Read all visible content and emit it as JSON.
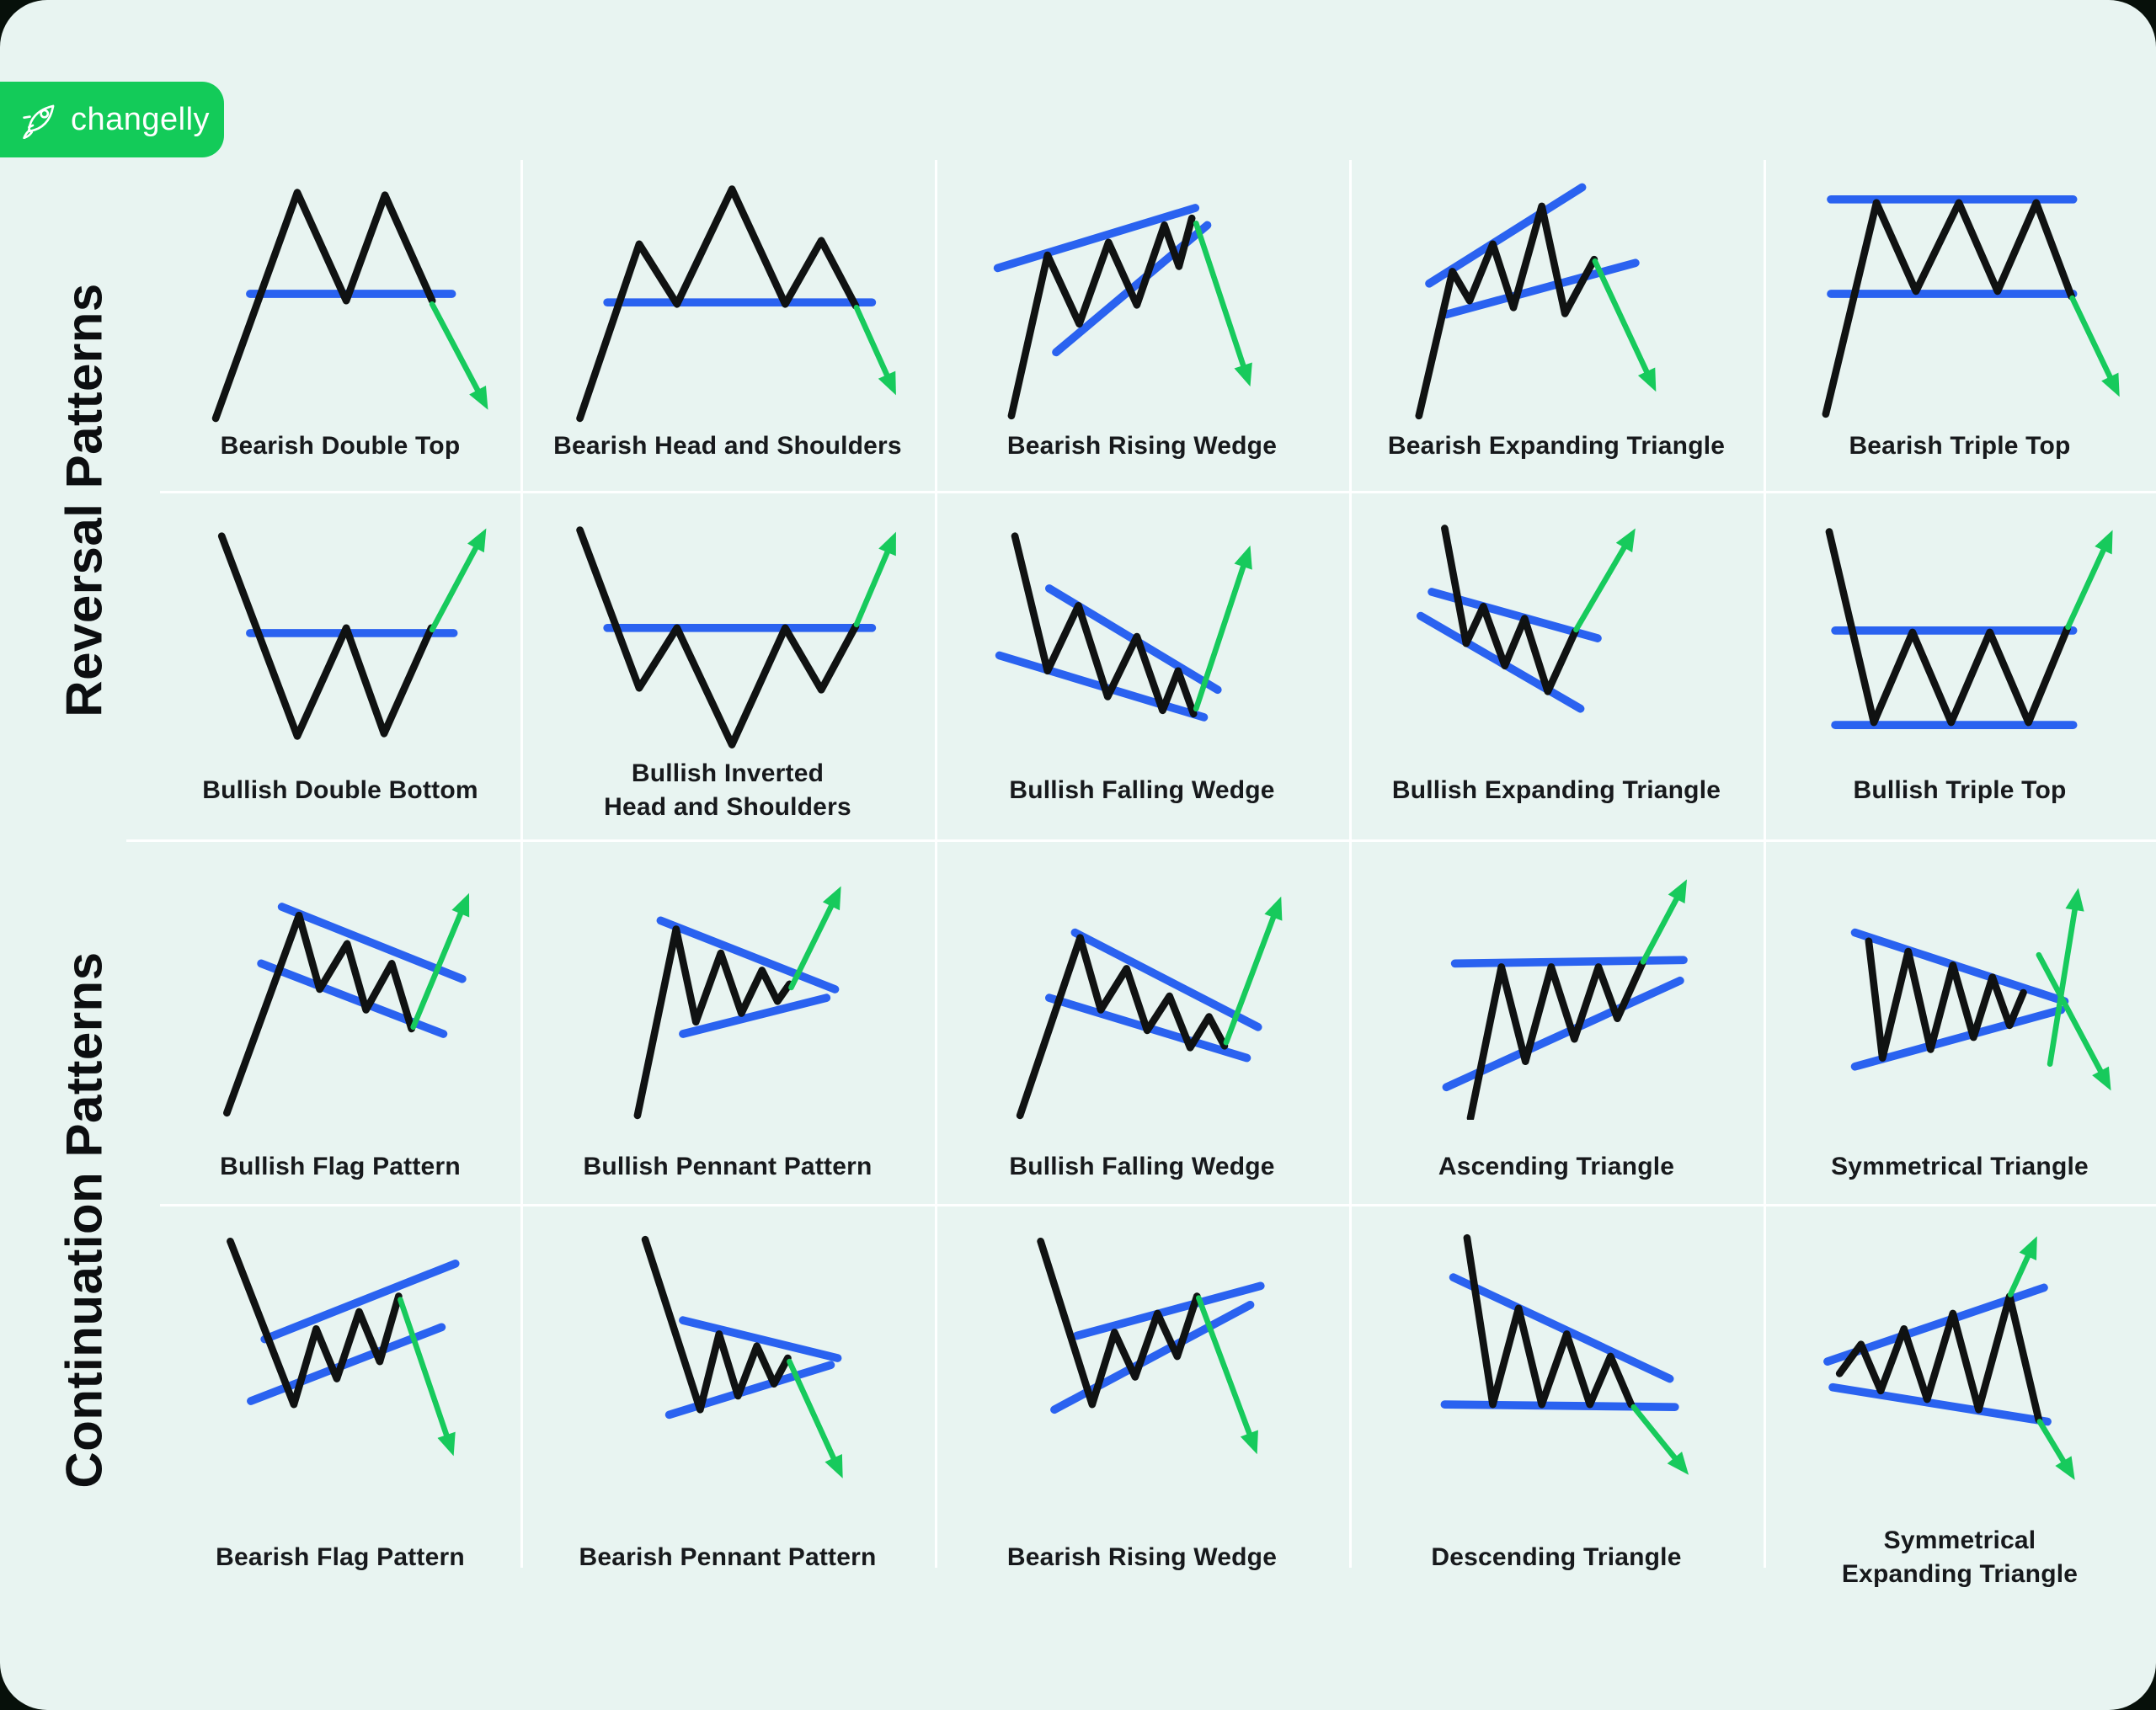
{
  "brand": {
    "name": "changelly",
    "icon": "rocket-icon",
    "badge_color": "#13cb59",
    "text_color": "#ffffff"
  },
  "colors": {
    "card_background": "#e8f4f1",
    "outer_background": "#07100a",
    "price_line": "#101212",
    "trend_line": "#2a62f0",
    "arrow": "#17ca5c",
    "divider": "#ffffff",
    "label_text": "#17191c"
  },
  "sections": [
    {
      "label": "Reversal Patterns"
    },
    {
      "label": "Continuation Patterns"
    }
  ],
  "grid": {
    "rows": [
      {
        "cells": [
          {
            "label_lines": [
              "Bearish Double Top"
            ],
            "black": [
              55,
              295,
              150,
              32,
              207,
              158,
              252,
              35,
              307,
              158
            ],
            "blue": [
              [
                95,
                150,
                330,
                150
              ]
            ],
            "arrows": [
              [
                307,
                162,
                372,
                285
              ]
            ]
          },
          {
            "label_lines": [
              "Bearish Head and Shoulders"
            ],
            "black": [
              28,
              295,
              97,
              92,
              141,
              162,
              205,
              28,
              267,
              162,
              309,
              88,
              349,
              164
            ],
            "blue": [
              [
                60,
                160,
                368,
                160
              ]
            ],
            "arrows": [
              [
                350,
                166,
                396,
                268
              ]
            ]
          },
          {
            "label_lines": [
              "Bearish Rising Wedge"
            ],
            "black": [
              48,
              292,
              90,
              105,
              127,
              185,
              161,
              90,
              194,
              163,
              226,
              70,
              243,
              118,
              258,
              62
            ],
            "blue": [
              [
                32,
                120,
                262,
                50
              ],
              [
                100,
                218,
                276,
                70
              ]
            ],
            "arrows": [
              [
                263,
                68,
                326,
                258
              ]
            ]
          },
          {
            "label_lines": [
              "Bearish Expanding Triangle"
            ],
            "black": [
              40,
              292,
              79,
              124,
              99,
              158,
              126,
              92,
              150,
              166,
              183,
              48,
              210,
              173,
              244,
              110
            ],
            "blue": [
              [
                52,
                138,
                230,
                26
              ],
              [
                72,
                174,
                292,
                114
              ]
            ],
            "arrows": [
              [
                245,
                112,
                316,
                264
              ]
            ]
          },
          {
            "label_lines": [
              "Bearish Triple Top"
            ],
            "black": [
              44,
              290,
              103,
              44,
              149,
              147,
              199,
              44,
              244,
              147,
              289,
              44,
              330,
              153
            ],
            "blue": [
              [
                50,
                40,
                332,
                40
              ],
              [
                50,
                150,
                332,
                150
              ]
            ],
            "arrows": [
              [
                331,
                155,
                386,
                270
              ]
            ]
          }
        ]
      },
      {
        "cells": [
          {
            "label_lines": [
              "Bullish Double Bottom"
            ],
            "black": [
              62,
              35,
              150,
              268,
              207,
              142,
              251,
              265,
              306,
              142
            ],
            "blue": [
              [
                95,
                148,
                332,
                148
              ]
            ],
            "arrows": [
              [
                307,
                144,
                370,
                26
              ]
            ]
          },
          {
            "label_lines": [
              "Bullish Inverted",
              "Head and Shoulders"
            ],
            "black": [
              28,
              28,
              97,
              212,
              141,
              142,
              205,
              278,
              267,
              142,
              309,
              214,
              349,
              140
            ],
            "blue": [
              [
                60,
                142,
                368,
                142
              ]
            ],
            "arrows": [
              [
                350,
                138,
                396,
                30
              ]
            ]
          },
          {
            "label_lines": [
              "Bullish Falling Wedge"
            ],
            "black": [
              52,
              35,
              90,
              192,
              126,
              116,
              160,
              222,
              194,
              152,
              224,
              238,
              242,
              192,
              260,
              242
            ],
            "blue": [
              [
                92,
                96,
                288,
                214
              ],
              [
                34,
                174,
                272,
                246
              ]
            ],
            "arrows": [
              [
                263,
                236,
                326,
                46
              ]
            ]
          },
          {
            "label_lines": [
              "Bullish Expanding Triangle"
            ],
            "black": [
              70,
              26,
              95,
              160,
              115,
              117,
              140,
              186,
              163,
              131,
              190,
              216,
              222,
              146
            ],
            "blue": [
              [
                55,
                100,
                248,
                154
              ],
              [
                42,
                128,
                228,
                236
              ]
            ],
            "arrows": [
              [
                223,
                144,
                292,
                26
              ]
            ]
          },
          {
            "label_lines": [
              "Bullish Triple Top"
            ],
            "black": [
              48,
              30,
              100,
              252,
              145,
              147,
              190,
              252,
              235,
              147,
              280,
              252,
              325,
              143
            ],
            "blue": [
              [
                55,
                145,
                332,
                145
              ],
              [
                55,
                255,
                332,
                255
              ]
            ],
            "arrows": [
              [
                326,
                141,
                378,
                28
              ]
            ]
          }
        ]
      },
      {
        "cells": [
          {
            "label_lines": [
              "Bullish Flag Pattern"
            ],
            "black": [
              68,
              292,
              152,
              62,
              176,
              148,
              208,
              95,
              230,
              172,
              260,
              118,
              283,
              194
            ],
            "blue": [
              [
                132,
                52,
                342,
                136
              ],
              [
                108,
                118,
                320,
                200
              ]
            ],
            "arrows": [
              [
                285,
                192,
                350,
                36
              ]
            ]
          },
          {
            "label_lines": [
              "Bullish Pennant Pattern"
            ],
            "black": [
              95,
              295,
              140,
              78,
              163,
              186,
              192,
              106,
              216,
              176,
              240,
              126,
              258,
              162,
              272,
              142
            ],
            "blue": [
              [
                122,
                68,
                325,
                148
              ],
              [
                148,
                200,
                315,
                158
              ]
            ],
            "arrows": [
              [
                274,
                146,
                332,
                28
              ]
            ]
          },
          {
            "label_lines": [
              "Bullish Falling Wedge"
            ],
            "black": [
              58,
              295,
              128,
              88,
              152,
              172,
              182,
              124,
              206,
              196,
              232,
              156,
              256,
              216,
              278,
              180,
              296,
              214
            ],
            "blue": [
              [
                122,
                82,
                335,
                192
              ],
              [
                92,
                158,
                322,
                228
              ]
            ],
            "arrows": [
              [
                298,
                210,
                362,
                40
              ]
            ]
          },
          {
            "label_lines": [
              "Ascending Triangle"
            ],
            "black": [
              100,
              298,
              136,
              122,
              164,
              232,
              194,
              122,
              221,
              206,
              249,
              122,
              271,
              182,
              300,
              118
            ],
            "blue": [
              [
                82,
                118,
                348,
                114
              ],
              [
                72,
                262,
                344,
                138
              ]
            ],
            "arrows": [
              [
                301,
                116,
                352,
                20
              ]
            ]
          },
          {
            "label_lines": [
              "Symmetrical Triangle"
            ],
            "black": [
              94,
              92,
              110,
              228,
              140,
              104,
              166,
              218,
              192,
              120,
              216,
              204,
              238,
              134,
              258,
              190,
              274,
              152
            ],
            "blue": [
              [
                78,
                82,
                322,
                162
              ],
              [
                78,
                238,
                318,
                172
              ]
            ],
            "arrows": [
              [
                305,
                235,
                338,
                30
              ],
              [
                292,
                108,
                376,
                266
              ]
            ]
          }
        ]
      },
      {
        "cells": [
          {
            "label_lines": [
              "Bearish Flag Pattern"
            ],
            "black": [
              72,
              16,
              146,
              206,
              172,
              118,
              196,
              176,
              222,
              98,
              246,
              156,
              268,
              80
            ],
            "blue": [
              [
                112,
                130,
                334,
                42
              ],
              [
                96,
                202,
                318,
                116
              ]
            ],
            "arrows": [
              [
                270,
                84,
                332,
                266
              ]
            ]
          },
          {
            "label_lines": [
              "Bearish Pennant Pattern"
            ],
            "black": [
              104,
              14,
              168,
              212,
              190,
              124,
              212,
              196,
              234,
              138,
              254,
              182,
              270,
              152
            ],
            "blue": [
              [
                148,
                108,
                328,
                152
              ],
              [
                132,
                218,
                320,
                160
              ]
            ],
            "arrows": [
              [
                272,
                156,
                334,
                292
              ]
            ]
          },
          {
            "label_lines": [
              "Bearish Rising Wedge"
            ],
            "black": [
              82,
              16,
              142,
              206,
              168,
              122,
              192,
              174,
              218,
              100,
              241,
              150,
              264,
              80
            ],
            "blue": [
              [
                124,
                126,
                338,
                68
              ],
              [
                98,
                212,
                326,
                90
              ]
            ],
            "arrows": [
              [
                266,
                82,
                334,
                264
              ]
            ]
          },
          {
            "label_lines": [
              "Descending Triangle"
            ],
            "black": [
              96,
              12,
              126,
              206,
              156,
              94,
              183,
              206,
              212,
              124,
              239,
              206,
              263,
              150,
              287,
              206
            ],
            "blue": [
              [
                80,
                58,
                332,
                176
              ],
              [
                70,
                206,
                338,
                209
              ]
            ],
            "arrows": [
              [
                290,
                209,
                354,
                288
              ]
            ]
          },
          {
            "label_lines": [
              "Symmetrical",
              "Expanding Triangle"
            ],
            "black": [
              60,
              170,
              85,
              136,
              108,
              190,
              135,
              118,
              162,
              200,
              192,
              100,
              222,
              212,
              258,
              80,
              292,
              224
            ],
            "blue": [
              [
                46,
                156,
                298,
                70
              ],
              [
                52,
                186,
                302,
                226
              ]
            ],
            "arrows": [
              [
                259,
                78,
                290,
                10
              ],
              [
                293,
                226,
                334,
                294
              ]
            ]
          }
        ]
      }
    ]
  }
}
